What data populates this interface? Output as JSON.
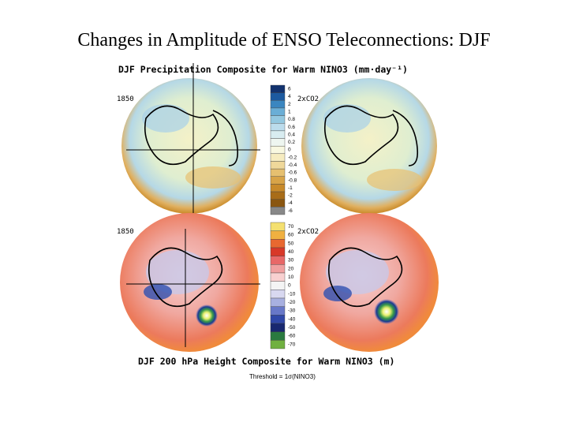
{
  "slide": {
    "title": "Changes in Amplitude of ENSO Teleconnections:  DJF",
    "top_panel": {
      "title": "DJF Precipitation Composite for Warm NINO3 (mm·day⁻¹)",
      "left_label": "1850",
      "right_label": "2xCO2",
      "colorbar_labels": [
        "6",
        "4",
        "2",
        "1",
        "0.8",
        "0.6",
        "0.4",
        "0.2",
        "0",
        "-0.2",
        "-0.4",
        "-0.6",
        "-0.8",
        "-1",
        "-2",
        "-4",
        "-6"
      ]
    },
    "bottom_panel": {
      "title": "DJF 200 hPa Height Composite for Warm NINO3 (m)",
      "left_label": "1850",
      "right_label": "2xCO2",
      "colorbar_labels": [
        "70",
        "60",
        "50",
        "40",
        "30",
        "20",
        "10",
        "0",
        "-10",
        "-20",
        "-30",
        "-40",
        "-50",
        "-60",
        "-70"
      ],
      "footnote": "Threshold = 1σ(NINO3)"
    }
  }
}
